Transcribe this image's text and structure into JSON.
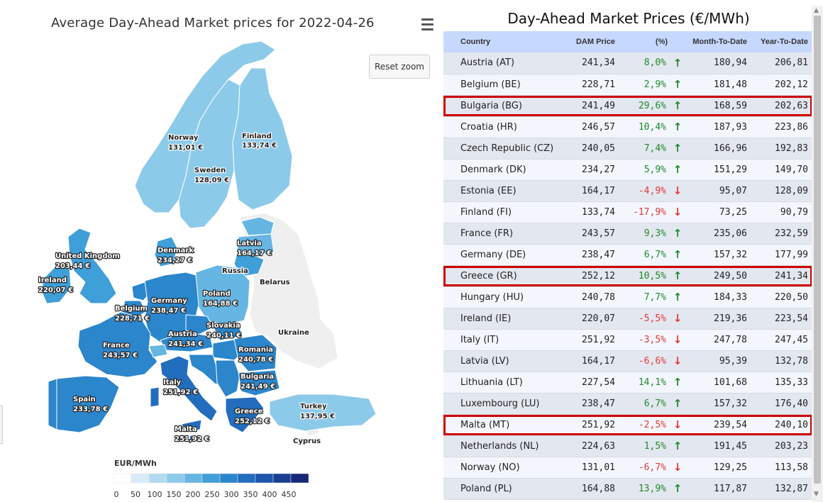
{
  "map": {
    "title": "Average Day-Ahead Market prices for 2022-04-26",
    "reset_zoom_label": "Reset zoom",
    "menu_icon": "hamburger-menu-icon",
    "colors": {
      "ocean": "#ffffff",
      "nodata": "#efefef",
      "border": "#ffffff",
      "highlight": "#c92a2a"
    },
    "labels": {
      "norway": "Norway",
      "norway_price": "131,01 €",
      "finland": "Finland",
      "finland_price": "133,74 €",
      "sweden": "Sweden",
      "sweden_price": "128,09 €",
      "uk": "United Kingdom",
      "uk_price": "203,44 €",
      "ireland": "Ireland",
      "ireland_price": "220,07 €",
      "denmark": "Denmark",
      "denmark_price": "234,27 €",
      "latvia": "Latvia",
      "latvia_price": "164,17 €",
      "russia": "Russia",
      "belarus": "Belarus",
      "poland": "Poland",
      "poland_price": "164,88 €",
      "germany": "Germany",
      "germany_price": "238,47 €",
      "belgium": "Belgium",
      "belgium_price": "228,71 €",
      "slovakia": "Slovakia",
      "slovakia_price": "240,11 €",
      "ukraine": "Ukraine",
      "austria": "Austria",
      "austria_price": "241,34 €",
      "france": "France",
      "france_price": "243,57 €",
      "romania": "Romania",
      "romania_price": "240,78 €",
      "bulgaria": "Bulgaria",
      "bulgaria_price": "241,49 €",
      "italy": "Italy",
      "italy_price": "251,92 €",
      "spain": "Spain",
      "spain_price": "233,78 €",
      "turkey": "Turkey",
      "turkey_price": "137,95 €",
      "greece": "Greece",
      "greece_price": "252,12 €",
      "malta": "Malta",
      "malta_price": "251,92 €",
      "cyprus": "Cyprus"
    },
    "legend": {
      "title": "EUR/MWh",
      "ticks": [
        "0",
        "50",
        "100",
        "150",
        "200",
        "250",
        "300",
        "350",
        "400",
        "450"
      ],
      "colors": [
        "#ffffff",
        "#d8ecf8",
        "#b2dbf1",
        "#8ccaea",
        "#65b6e2",
        "#3f9fd8",
        "#2b86cc",
        "#226dbd",
        "#1d56aa",
        "#1a3f93",
        "#17287a"
      ]
    }
  },
  "table": {
    "title": "Day-Ahead Market Prices (€/MWh)",
    "headers": {
      "country": "Country",
      "dam": "DAM Price",
      "pct": "(%)",
      "mtd": "Month-To-Date",
      "ytd": "Year-To-Date"
    },
    "colors": {
      "header_bg": "#c7d8ff",
      "positive": "#1f8a2a",
      "negative": "#e53935",
      "highlight_border": "#d00000"
    },
    "rows": [
      {
        "country": "Austria (AT)",
        "dam": "241,34",
        "pct": "8,0%",
        "trend": "up",
        "mtd": "180,94",
        "ytd": "206,81",
        "highlighted": false
      },
      {
        "country": "Belgium (BE)",
        "dam": "228,71",
        "pct": "2,9%",
        "trend": "up",
        "mtd": "181,48",
        "ytd": "202,12",
        "highlighted": false
      },
      {
        "country": "Bulgaria (BG)",
        "dam": "241,49",
        "pct": "29,6%",
        "trend": "up",
        "mtd": "168,59",
        "ytd": "202,63",
        "highlighted": true
      },
      {
        "country": "Croatia (HR)",
        "dam": "246,57",
        "pct": "10,4%",
        "trend": "up",
        "mtd": "187,93",
        "ytd": "223,86",
        "highlighted": false
      },
      {
        "country": "Czech Republic (CZ)",
        "dam": "240,05",
        "pct": "7,4%",
        "trend": "up",
        "mtd": "166,96",
        "ytd": "192,83",
        "highlighted": false
      },
      {
        "country": "Denmark (DK)",
        "dam": "234,27",
        "pct": "5,9%",
        "trend": "up",
        "mtd": "151,29",
        "ytd": "149,70",
        "highlighted": false
      },
      {
        "country": "Estonia (EE)",
        "dam": "164,17",
        "pct": "-4,9%",
        "trend": "down",
        "mtd": "95,07",
        "ytd": "128,09",
        "highlighted": false
      },
      {
        "country": "Finland (FI)",
        "dam": "133,74",
        "pct": "-17,9%",
        "trend": "down",
        "mtd": "73,25",
        "ytd": "90,79",
        "highlighted": false
      },
      {
        "country": "France (FR)",
        "dam": "243,57",
        "pct": "9,3%",
        "trend": "up",
        "mtd": "235,06",
        "ytd": "232,59",
        "highlighted": false
      },
      {
        "country": "Germany (DE)",
        "dam": "238,47",
        "pct": "6,7%",
        "trend": "up",
        "mtd": "157,32",
        "ytd": "177,99",
        "highlighted": false
      },
      {
        "country": "Greece (GR)",
        "dam": "252,12",
        "pct": "10,5%",
        "trend": "up",
        "mtd": "249,50",
        "ytd": "241,34",
        "highlighted": true
      },
      {
        "country": "Hungary (HU)",
        "dam": "240,78",
        "pct": "7,7%",
        "trend": "up",
        "mtd": "184,33",
        "ytd": "220,50",
        "highlighted": false
      },
      {
        "country": "Ireland (IE)",
        "dam": "220,07",
        "pct": "-5,5%",
        "trend": "down",
        "mtd": "219,36",
        "ytd": "223,54",
        "highlighted": false
      },
      {
        "country": "Italy (IT)",
        "dam": "251,92",
        "pct": "-3,5%",
        "trend": "down",
        "mtd": "247,78",
        "ytd": "247,45",
        "highlighted": false
      },
      {
        "country": "Latvia (LV)",
        "dam": "164,17",
        "pct": "-6,6%",
        "trend": "down",
        "mtd": "95,39",
        "ytd": "132,78",
        "highlighted": false
      },
      {
        "country": "Lithuania (LT)",
        "dam": "227,54",
        "pct": "14,1%",
        "trend": "up",
        "mtd": "101,68",
        "ytd": "135,33",
        "highlighted": false
      },
      {
        "country": "Luxembourg (LU)",
        "dam": "238,47",
        "pct": "6,7%",
        "trend": "up",
        "mtd": "157,32",
        "ytd": "176,40",
        "highlighted": false
      },
      {
        "country": "Malta (MT)",
        "dam": "251,92",
        "pct": "-2,5%",
        "trend": "down",
        "mtd": "239,54",
        "ytd": "240,10",
        "highlighted": true
      },
      {
        "country": "Netherlands (NL)",
        "dam": "224,63",
        "pct": "1,5%",
        "trend": "up",
        "mtd": "191,45",
        "ytd": "203,23",
        "highlighted": false
      },
      {
        "country": "Norway (NO)",
        "dam": "131,01",
        "pct": "-6,7%",
        "trend": "down",
        "mtd": "129,25",
        "ytd": "113,58",
        "highlighted": false
      },
      {
        "country": "Poland (PL)",
        "dam": "164,88",
        "pct": "13,9%",
        "trend": "up",
        "mtd": "117,87",
        "ytd": "132,87",
        "highlighted": false
      }
    ]
  }
}
